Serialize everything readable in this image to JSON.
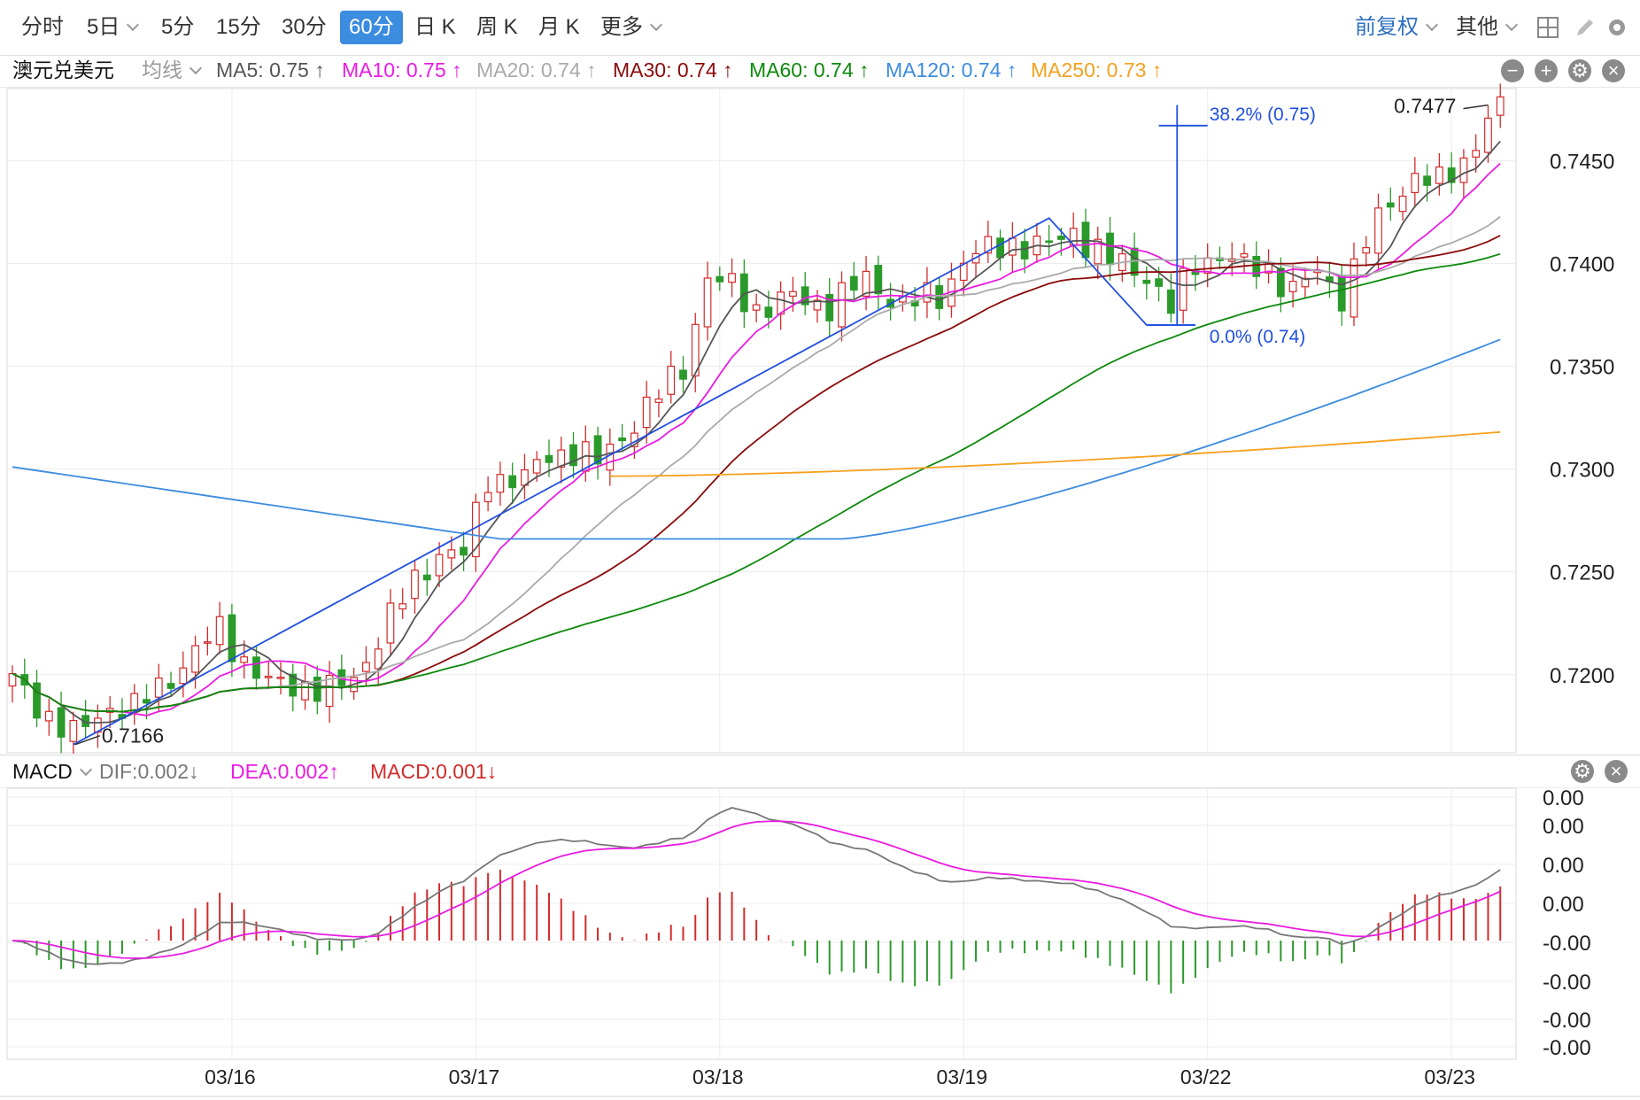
{
  "toolbar": {
    "periods": [
      "分时",
      "5日",
      "5分",
      "15分",
      "30分",
      "60分",
      "日 K",
      "周 K",
      "月 K",
      "更多"
    ],
    "active_period": "60分",
    "right_items": [
      "前复权",
      "其他"
    ]
  },
  "legend": {
    "symbol": "澳元兑美元",
    "ma_type": "均线",
    "items": [
      {
        "text": "MA5: 0.75 ↑",
        "color": "#555555"
      },
      {
        "text": "MA10: 0.75 ↑",
        "color": "#e91ce2"
      },
      {
        "text": "MA20: 0.74 ↑",
        "color": "#aaaaaa"
      },
      {
        "text": "MA30: 0.74 ↑",
        "color": "#8b0a0a"
      },
      {
        "text": "MA60: 0.74 ↑",
        "color": "#0d8a0d"
      },
      {
        "text": "MA120: 0.74 ↑",
        "color": "#3c8ce0"
      },
      {
        "text": "MA250: 0.73 ↑",
        "color": "#f5a11f"
      }
    ]
  },
  "macd_legend": {
    "name": "MACD",
    "items": [
      {
        "text": "DIF:0.002↓",
        "color": "#777777"
      },
      {
        "text": "DEA:0.002↑",
        "color": "#e91ce2"
      },
      {
        "text": "MACD:0.001↓",
        "color": "#d22b2b"
      }
    ]
  },
  "chart_data": {
    "type": "candlestick",
    "price_axis": {
      "ticks": [
        "0.7450",
        "0.7400",
        "0.7350",
        "0.7300",
        "0.7250",
        "0.7200"
      ],
      "ylim": [
        0.7162,
        0.7485
      ]
    },
    "macd_axis": {
      "ticks": [
        "0.00",
        "0.00",
        "0.00",
        "0.00",
        "-0.00",
        "-0.00",
        "-0.00",
        "-0.00"
      ]
    },
    "date_labels": [
      "03/16",
      "03/17",
      "03/18",
      "03/19",
      "03/22",
      "03/23"
    ],
    "date_index": [
      18,
      38,
      58,
      78,
      98,
      118
    ],
    "num_bars": 123,
    "annotations": {
      "high": "0.7477",
      "low": "0.7166",
      "fib_top": "38.2% (0.75)",
      "fib_bottom": "0.0% (0.74)"
    },
    "anchors": [
      [
        0,
        0.7197
      ],
      [
        3,
        0.718
      ],
      [
        5,
        0.717
      ],
      [
        8,
        0.7185
      ],
      [
        10,
        0.7183
      ],
      [
        14,
        0.7205
      ],
      [
        17,
        0.7222
      ],
      [
        19,
        0.7207
      ],
      [
        21,
        0.7195
      ],
      [
        24,
        0.7195
      ],
      [
        26,
        0.7192
      ],
      [
        28,
        0.7198
      ],
      [
        31,
        0.7228
      ],
      [
        33,
        0.7245
      ],
      [
        35,
        0.726
      ],
      [
        37,
        0.7258
      ],
      [
        39,
        0.7296
      ],
      [
        42,
        0.7295
      ],
      [
        44,
        0.7307
      ],
      [
        46,
        0.7309
      ],
      [
        48,
        0.7303
      ],
      [
        51,
        0.7323
      ],
      [
        53,
        0.7336
      ],
      [
        55,
        0.735
      ],
      [
        57,
        0.7393
      ],
      [
        59,
        0.7388
      ],
      [
        61,
        0.7378
      ],
      [
        64,
        0.7383
      ],
      [
        67,
        0.738
      ],
      [
        70,
        0.7392
      ],
      [
        73,
        0.738
      ],
      [
        76,
        0.7384
      ],
      [
        78,
        0.7402
      ],
      [
        82,
        0.741
      ],
      [
        85,
        0.7408
      ],
      [
        87,
        0.7416
      ],
      [
        90,
        0.7401
      ],
      [
        93,
        0.7395
      ],
      [
        95,
        0.7378
      ],
      [
        97,
        0.74
      ],
      [
        99,
        0.7405
      ],
      [
        101,
        0.7398
      ],
      [
        103,
        0.7397
      ],
      [
        105,
        0.7387
      ],
      [
        107,
        0.7395
      ],
      [
        109,
        0.7385
      ],
      [
        111,
        0.741
      ],
      [
        113,
        0.743
      ],
      [
        115,
        0.7443
      ],
      [
        117,
        0.7438
      ],
      [
        119,
        0.745
      ],
      [
        121,
        0.747
      ],
      [
        122,
        0.7475
      ]
    ]
  }
}
